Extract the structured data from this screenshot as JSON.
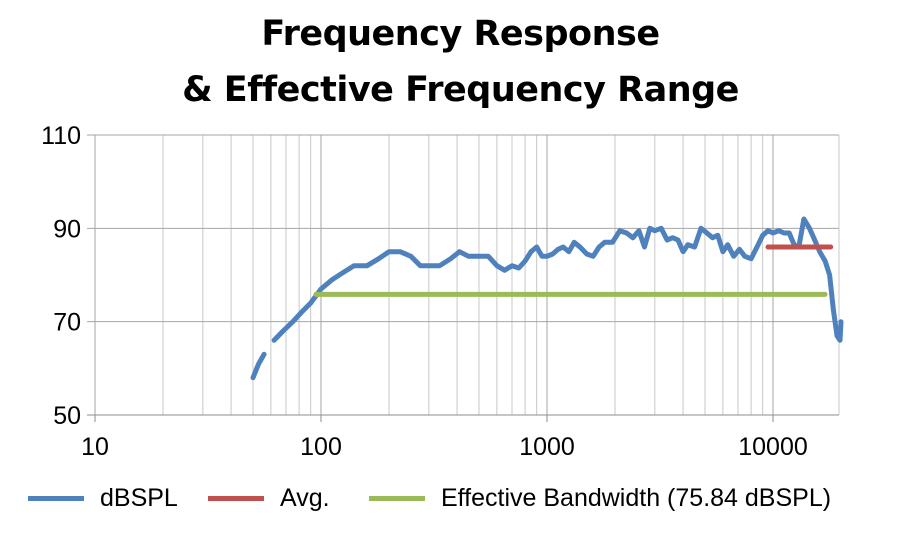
{
  "chart_data": {
    "type": "line",
    "title": "Frequency Response",
    "subtitle": "& Effective Frequency Range",
    "xscale": "log",
    "xlim": [
      10,
      20000
    ],
    "ylim": [
      50,
      110
    ],
    "x_ticks": [
      "10",
      "100",
      "1000",
      "10000"
    ],
    "y_ticks": [
      "110",
      "90",
      "70",
      "50"
    ],
    "grid": true,
    "legend_position": "bottom",
    "series": [
      {
        "name": "dBSPL",
        "color": "#4F81BD",
        "segments": [
          [
            [
              50,
              58
            ],
            [
              53,
              61
            ],
            [
              56,
              63
            ]
          ],
          [
            [
              62,
              66
            ],
            [
              68,
              68
            ],
            [
              75,
              70
            ],
            [
              82,
              72
            ],
            [
              90,
              74
            ],
            [
              100,
              77
            ],
            [
              112,
              79
            ],
            [
              125,
              80.5
            ],
            [
              140,
              82
            ],
            [
              160,
              82
            ],
            [
              180,
              83.5
            ],
            [
              200,
              85
            ],
            [
              224,
              85
            ],
            [
              250,
              84
            ],
            [
              275,
              82
            ],
            [
              300,
              82
            ],
            [
              335,
              82
            ],
            [
              375,
              83.5
            ],
            [
              410,
              85
            ],
            [
              450,
              84
            ],
            [
              500,
              84
            ],
            [
              550,
              84
            ],
            [
              600,
              82
            ],
            [
              650,
              81
            ],
            [
              700,
              82
            ],
            [
              750,
              81.5
            ],
            [
              800,
              83
            ],
            [
              850,
              85
            ],
            [
              900,
              86
            ],
            [
              950,
              84
            ],
            [
              1000,
              84
            ],
            [
              1060,
              84.5
            ],
            [
              1120,
              85.5
            ],
            [
              1180,
              86
            ],
            [
              1250,
              85
            ],
            [
              1320,
              87
            ],
            [
              1400,
              86
            ],
            [
              1500,
              84.5
            ],
            [
              1600,
              84
            ],
            [
              1700,
              86
            ],
            [
              1800,
              87
            ],
            [
              1950,
              87
            ],
            [
              2100,
              89.5
            ],
            [
              2250,
              89
            ],
            [
              2400,
              88
            ],
            [
              2550,
              89.5
            ],
            [
              2700,
              86
            ],
            [
              2850,
              90
            ],
            [
              3000,
              89.5
            ],
            [
              3200,
              90
            ],
            [
              3400,
              87.5
            ],
            [
              3600,
              88
            ],
            [
              3800,
              87.5
            ],
            [
              4000,
              85
            ],
            [
              4200,
              86.5
            ],
            [
              4500,
              86
            ],
            [
              4800,
              90
            ],
            [
              5100,
              89
            ],
            [
              5400,
              88
            ],
            [
              5700,
              88.5
            ],
            [
              6000,
              85
            ],
            [
              6300,
              86.5
            ],
            [
              6700,
              84
            ],
            [
              7100,
              85.5
            ],
            [
              7500,
              84
            ],
            [
              8000,
              83.5
            ],
            [
              8500,
              86
            ],
            [
              9000,
              88.5
            ],
            [
              9500,
              89.5
            ],
            [
              10000,
              89
            ],
            [
              10600,
              89.5
            ],
            [
              11200,
              89
            ],
            [
              11800,
              89
            ],
            [
              12400,
              86.5
            ],
            [
              13000,
              86
            ],
            [
              13700,
              92
            ],
            [
              14500,
              90
            ],
            [
              15300,
              87.5
            ],
            [
              16100,
              85
            ],
            [
              17000,
              83
            ],
            [
              17800,
              80
            ],
            [
              18500,
              72.5
            ],
            [
              19200,
              67
            ],
            [
              19800,
              66
            ],
            [
              20000,
              70
            ]
          ]
        ]
      },
      {
        "name": "Avg.",
        "color": "#C0504D",
        "segments": [
          [
            [
              9500,
              86
            ],
            [
              18000,
              86
            ]
          ]
        ]
      },
      {
        "name": "Effective Bandwidth (75.84 dBSPL)",
        "color": "#9BBB59",
        "segments": [
          [
            [
              95,
              75.84
            ],
            [
              17000,
              75.84
            ]
          ]
        ]
      }
    ]
  }
}
